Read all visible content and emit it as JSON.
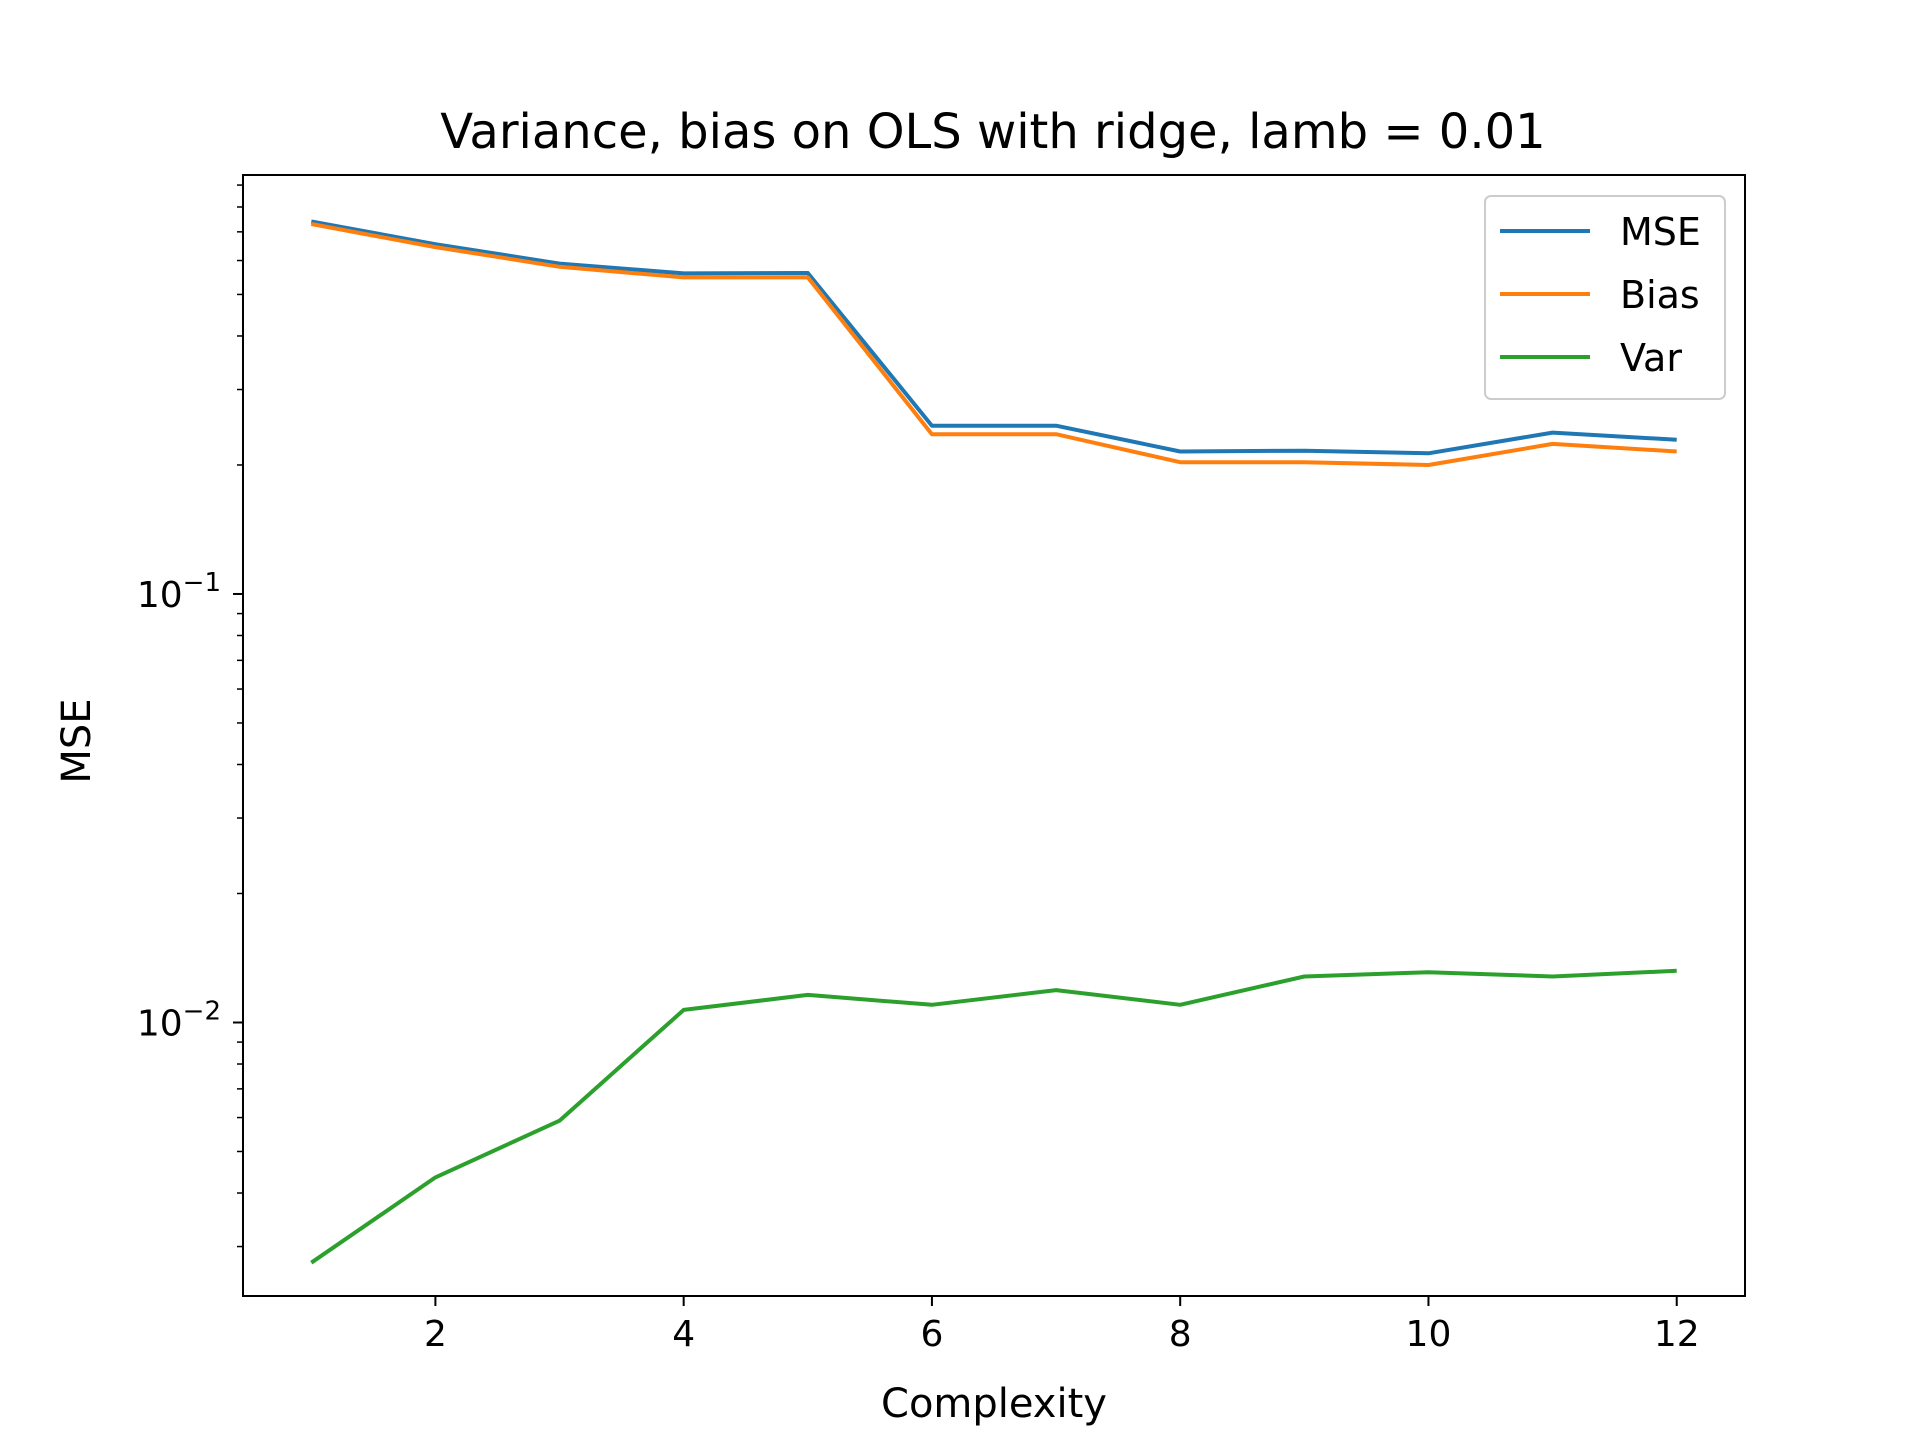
{
  "chart_data": {
    "type": "line",
    "title": "Variance, bias on OLS with ridge, lamb = 0.01",
    "xlabel": "Complexity",
    "ylabel": "MSE",
    "yscale": "log",
    "xlim": [
      0.45,
      12.55
    ],
    "ylim": [
      0.0023,
      0.95
    ],
    "xticks": [
      2,
      4,
      6,
      8,
      10,
      12
    ],
    "xtick_labels": [
      "2",
      "4",
      "6",
      "8",
      "10",
      "12"
    ],
    "yticks": [
      0.1,
      0.01
    ],
    "ytick_labels": [
      {
        "base": "10",
        "exp": "−1"
      },
      {
        "base": "10",
        "exp": "−2"
      }
    ],
    "legend_placement": "top-right",
    "grid": false,
    "x": [
      1,
      2,
      3,
      4,
      5,
      6,
      7,
      8,
      9,
      10,
      11,
      12
    ],
    "series": [
      {
        "name": "MSE",
        "color": "#1f77b4",
        "values": [
          0.74,
          0.655,
          0.59,
          0.56,
          0.561,
          0.247,
          0.247,
          0.215,
          0.216,
          0.213,
          0.238,
          0.229
        ]
      },
      {
        "name": "Bias",
        "color": "#ff7f0e",
        "values": [
          0.73,
          0.645,
          0.58,
          0.548,
          0.548,
          0.236,
          0.236,
          0.203,
          0.203,
          0.2,
          0.224,
          0.215
        ]
      },
      {
        "name": "Var",
        "color": "#2ca02c",
        "values": [
          0.00275,
          0.00435,
          0.0059,
          0.0107,
          0.0116,
          0.011,
          0.0119,
          0.011,
          0.0128,
          0.0131,
          0.0128,
          0.0132
        ]
      }
    ]
  }
}
